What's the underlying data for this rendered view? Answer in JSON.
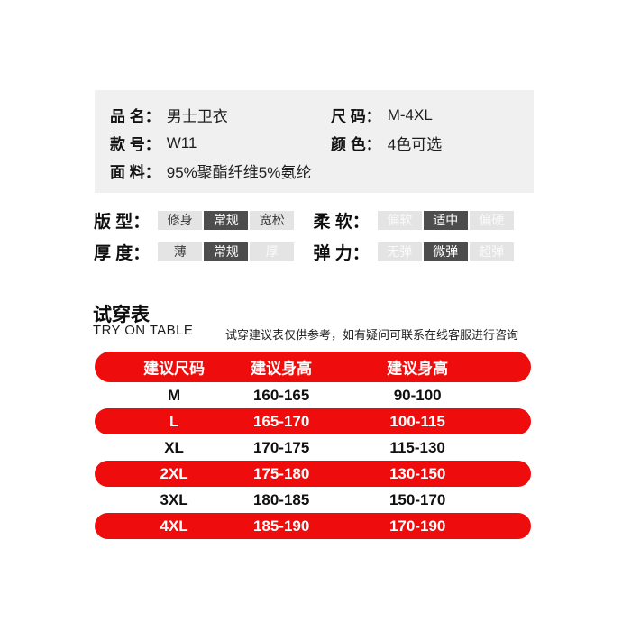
{
  "colors": {
    "red": "#ee0c0c",
    "box_bg": "#f0f0f0",
    "pill_bg": "#e4e4e4",
    "pill_selected_bg": "#4d4d4d"
  },
  "info_box": {
    "fields": [
      {
        "key": "product-name",
        "label": "品 名：",
        "value": "男士卫衣"
      },
      {
        "key": "size-range",
        "label": "尺 码：",
        "value": "M-4XL"
      },
      {
        "key": "style-number",
        "label": "款 号：",
        "value": "W11"
      },
      {
        "key": "color",
        "label": "颜 色：",
        "value": "4色可选"
      },
      {
        "key": "fabric",
        "label": "面 料：",
        "value": "95%聚酯纤维5%氨纶"
      }
    ]
  },
  "attributes": [
    {
      "key": "fit",
      "label": "版 型：",
      "options": [
        {
          "text": "修身",
          "style": "normal"
        },
        {
          "text": "常规",
          "style": "selected"
        },
        {
          "text": "宽松",
          "style": "normal"
        }
      ]
    },
    {
      "key": "softness",
      "label": "柔 软：",
      "options": [
        {
          "text": "偏软",
          "style": "faint"
        },
        {
          "text": "适中",
          "style": "selected"
        },
        {
          "text": "偏硬",
          "style": "faint"
        }
      ]
    },
    {
      "key": "thickness",
      "label": "厚 度：",
      "options": [
        {
          "text": "薄",
          "style": "normal"
        },
        {
          "text": "常规",
          "style": "selected"
        },
        {
          "text": "厚",
          "style": "faint"
        }
      ]
    },
    {
      "key": "elasticity",
      "label": "弹 力：",
      "options": [
        {
          "text": "无弹",
          "style": "faint"
        },
        {
          "text": "微弹",
          "style": "selected"
        },
        {
          "text": "超弹",
          "style": "faint"
        }
      ]
    }
  ],
  "tryon": {
    "title": "试穿表",
    "subtitle": "TRY ON TABLE",
    "note": "试穿建议表仅供参考，如有疑问可联系在线客服进行咨询"
  },
  "size_table": {
    "headers": [
      "建议尺码",
      "建议身高",
      "建议身高"
    ],
    "rows": [
      {
        "size": "M",
        "height": "160-165",
        "weight": "90-100",
        "highlight": false
      },
      {
        "size": "L",
        "height": "165-170",
        "weight": "100-115",
        "highlight": true
      },
      {
        "size": "XL",
        "height": "170-175",
        "weight": "115-130",
        "highlight": false
      },
      {
        "size": "2XL",
        "height": "175-180",
        "weight": "130-150",
        "highlight": true
      },
      {
        "size": "3XL",
        "height": "180-185",
        "weight": "150-170",
        "highlight": false
      },
      {
        "size": "4XL",
        "height": "185-190",
        "weight": "170-190",
        "highlight": true
      }
    ]
  }
}
